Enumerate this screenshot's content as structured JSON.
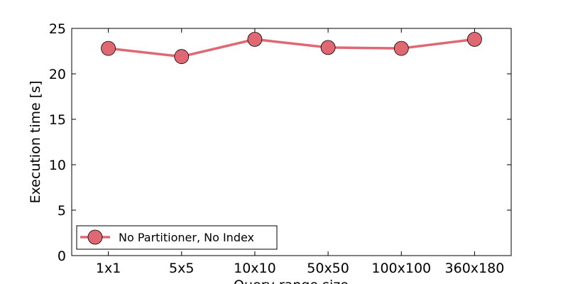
{
  "chart_data": {
    "type": "line",
    "categories": [
      "1x1",
      "5x5",
      "10x10",
      "50x50",
      "100x100",
      "360x180"
    ],
    "series": [
      {
        "name": "No Partitioner, No Index",
        "values": [
          22.8,
          21.9,
          23.8,
          22.9,
          22.8,
          23.8
        ],
        "color": "#e06872"
      }
    ],
    "xlabel": "Query range size",
    "ylabel": "Execution time [s]",
    "ylim": [
      0,
      25
    ],
    "yticks": [
      0,
      5,
      10,
      15,
      20,
      25
    ],
    "grid": false,
    "legend_position": "lower-left"
  }
}
